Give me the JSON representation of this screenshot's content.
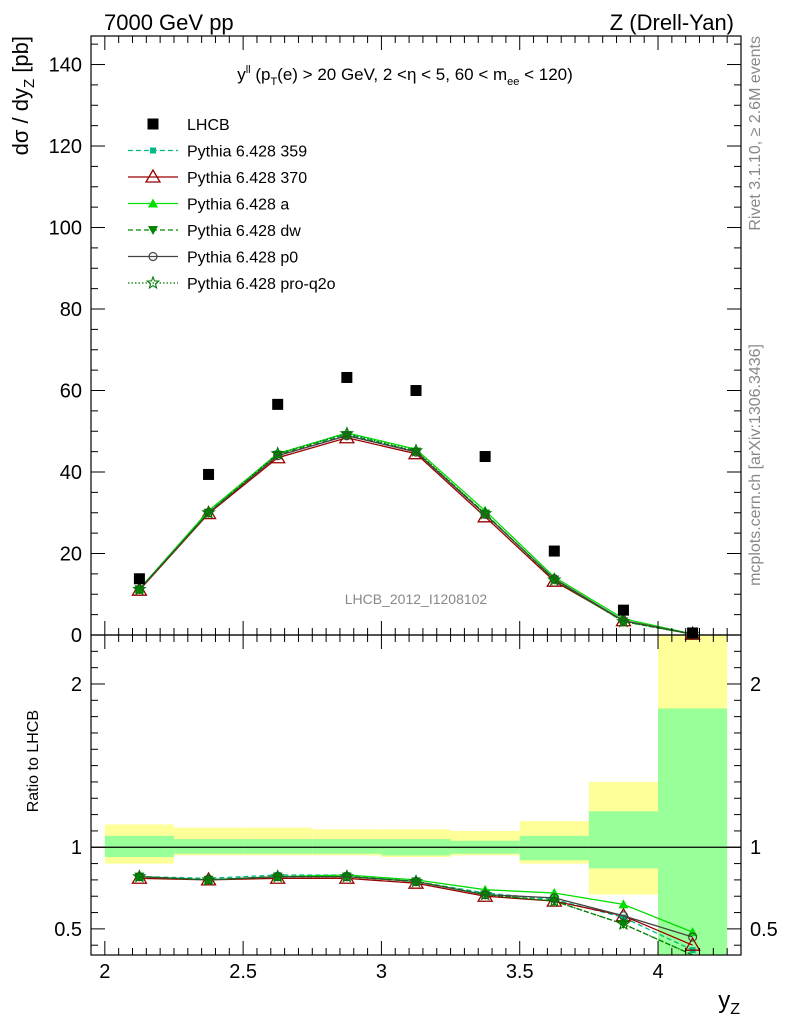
{
  "header": {
    "left": "7000 GeV pp",
    "right": "Z (Drell-Yan)"
  },
  "side_labels": {
    "top": "Rivet 3.1.10, ≥ 2.6M events",
    "bottom": "mcplots.cern.ch [arXiv:1306.3436]"
  },
  "chart_data": [
    {
      "type": "line",
      "title": "y^ll (p_T(e) > 20 GeV, 2 <η < 5, 60 < m_ee < 120)",
      "watermark": "LHCB_2012_I1208102",
      "ylabel": "dσ / dy_Z [pb]",
      "xlim": [
        1.95,
        4.3
      ],
      "ylim": [
        0,
        147
      ],
      "yticks": [
        0,
        20,
        40,
        60,
        80,
        100,
        120,
        140
      ],
      "x": [
        2.125,
        2.375,
        2.625,
        2.875,
        3.125,
        3.375,
        3.625,
        3.875,
        4.125
      ],
      "data": {
        "name": "LHCB",
        "values": [
          13.8,
          39.4,
          56.6,
          63.2,
          60.0,
          43.8,
          20.6,
          6.1,
          0.5
        ]
      },
      "series": [
        {
          "name": "Pythia 6.428 359",
          "color": "#00bb88",
          "values": [
            11.3,
            30.2,
            44.6,
            49.3,
            45.0,
            29.8,
            13.6,
            3.5,
            0.2
          ]
        },
        {
          "name": "Pythia 6.428 370",
          "color": "#990000",
          "values": [
            11.0,
            29.8,
            43.5,
            48.4,
            44.5,
            29.0,
            13.2,
            3.5,
            0.2
          ]
        },
        {
          "name": "Pythia 6.428 a",
          "color": "#00dd00",
          "values": [
            11.3,
            30.5,
            44.5,
            49.6,
            45.6,
            30.5,
            14.2,
            4.0,
            0.25
          ]
        },
        {
          "name": "Pythia 6.428 dw",
          "color": "#008800",
          "values": [
            11.2,
            30.0,
            44.2,
            49.0,
            45.0,
            29.8,
            13.6,
            3.3,
            0.2
          ]
        },
        {
          "name": "Pythia 6.428 p0",
          "color": "#444444",
          "values": [
            11.2,
            30.0,
            44.0,
            48.9,
            44.9,
            29.6,
            13.8,
            3.5,
            0.22
          ]
        },
        {
          "name": "Pythia 6.428 pro-q2o",
          "color": "#007700",
          "values": [
            11.2,
            30.0,
            44.5,
            49.4,
            45.2,
            29.8,
            13.5,
            3.3,
            0.2
          ]
        }
      ]
    },
    {
      "type": "line",
      "ylabel": "Ratio to LHCB",
      "xlabel": "y_Z",
      "xlim": [
        1.95,
        4.3
      ],
      "ylim": [
        0.34,
        2.3
      ],
      "yticks": [
        0.5,
        1,
        2
      ],
      "xticks": [
        2,
        2.5,
        3,
        3.5,
        4
      ],
      "bin_edges": [
        2.0,
        2.25,
        2.5,
        2.75,
        3.0,
        3.25,
        3.5,
        3.75,
        4.0,
        4.25
      ],
      "band_inner": [
        [
          0.94,
          1.07
        ],
        [
          0.96,
          1.05
        ],
        [
          0.96,
          1.05
        ],
        [
          0.96,
          1.05
        ],
        [
          0.95,
          1.05
        ],
        [
          0.96,
          1.04
        ],
        [
          0.92,
          1.07
        ],
        [
          0.87,
          1.22
        ],
        [
          0.3,
          1.85
        ]
      ],
      "band_outer": [
        [
          0.9,
          1.14
        ],
        [
          0.95,
          1.12
        ],
        [
          0.95,
          1.12
        ],
        [
          0.95,
          1.11
        ],
        [
          0.94,
          1.11
        ],
        [
          0.95,
          1.1
        ],
        [
          0.9,
          1.16
        ],
        [
          0.71,
          1.4
        ],
        [
          0.3,
          2.4
        ]
      ],
      "x": [
        2.125,
        2.375,
        2.625,
        2.875,
        3.125,
        3.375,
        3.625,
        3.875,
        4.125
      ],
      "series": [
        {
          "name": "Pythia 6.428 359",
          "color": "#00bb88",
          "values": [
            0.82,
            0.81,
            0.83,
            0.83,
            0.79,
            0.72,
            0.68,
            0.57,
            0.37
          ]
        },
        {
          "name": "Pythia 6.428 370",
          "color": "#990000",
          "values": [
            0.81,
            0.8,
            0.81,
            0.81,
            0.78,
            0.7,
            0.67,
            0.58,
            0.4
          ]
        },
        {
          "name": "Pythia 6.428 a",
          "color": "#00dd00",
          "values": [
            0.82,
            0.8,
            0.82,
            0.83,
            0.8,
            0.74,
            0.72,
            0.65,
            0.48
          ]
        },
        {
          "name": "Pythia 6.428 dw",
          "color": "#008800",
          "values": [
            0.82,
            0.8,
            0.82,
            0.82,
            0.79,
            0.71,
            0.67,
            0.53,
            0.3
          ]
        },
        {
          "name": "Pythia 6.428 p0",
          "color": "#444444",
          "values": [
            0.82,
            0.8,
            0.82,
            0.82,
            0.79,
            0.71,
            0.69,
            0.58,
            0.45
          ]
        },
        {
          "name": "Pythia 6.428 pro-q2o",
          "color": "#007700",
          "values": [
            0.82,
            0.8,
            0.82,
            0.82,
            0.79,
            0.71,
            0.67,
            0.53,
            0.3
          ]
        }
      ]
    }
  ]
}
